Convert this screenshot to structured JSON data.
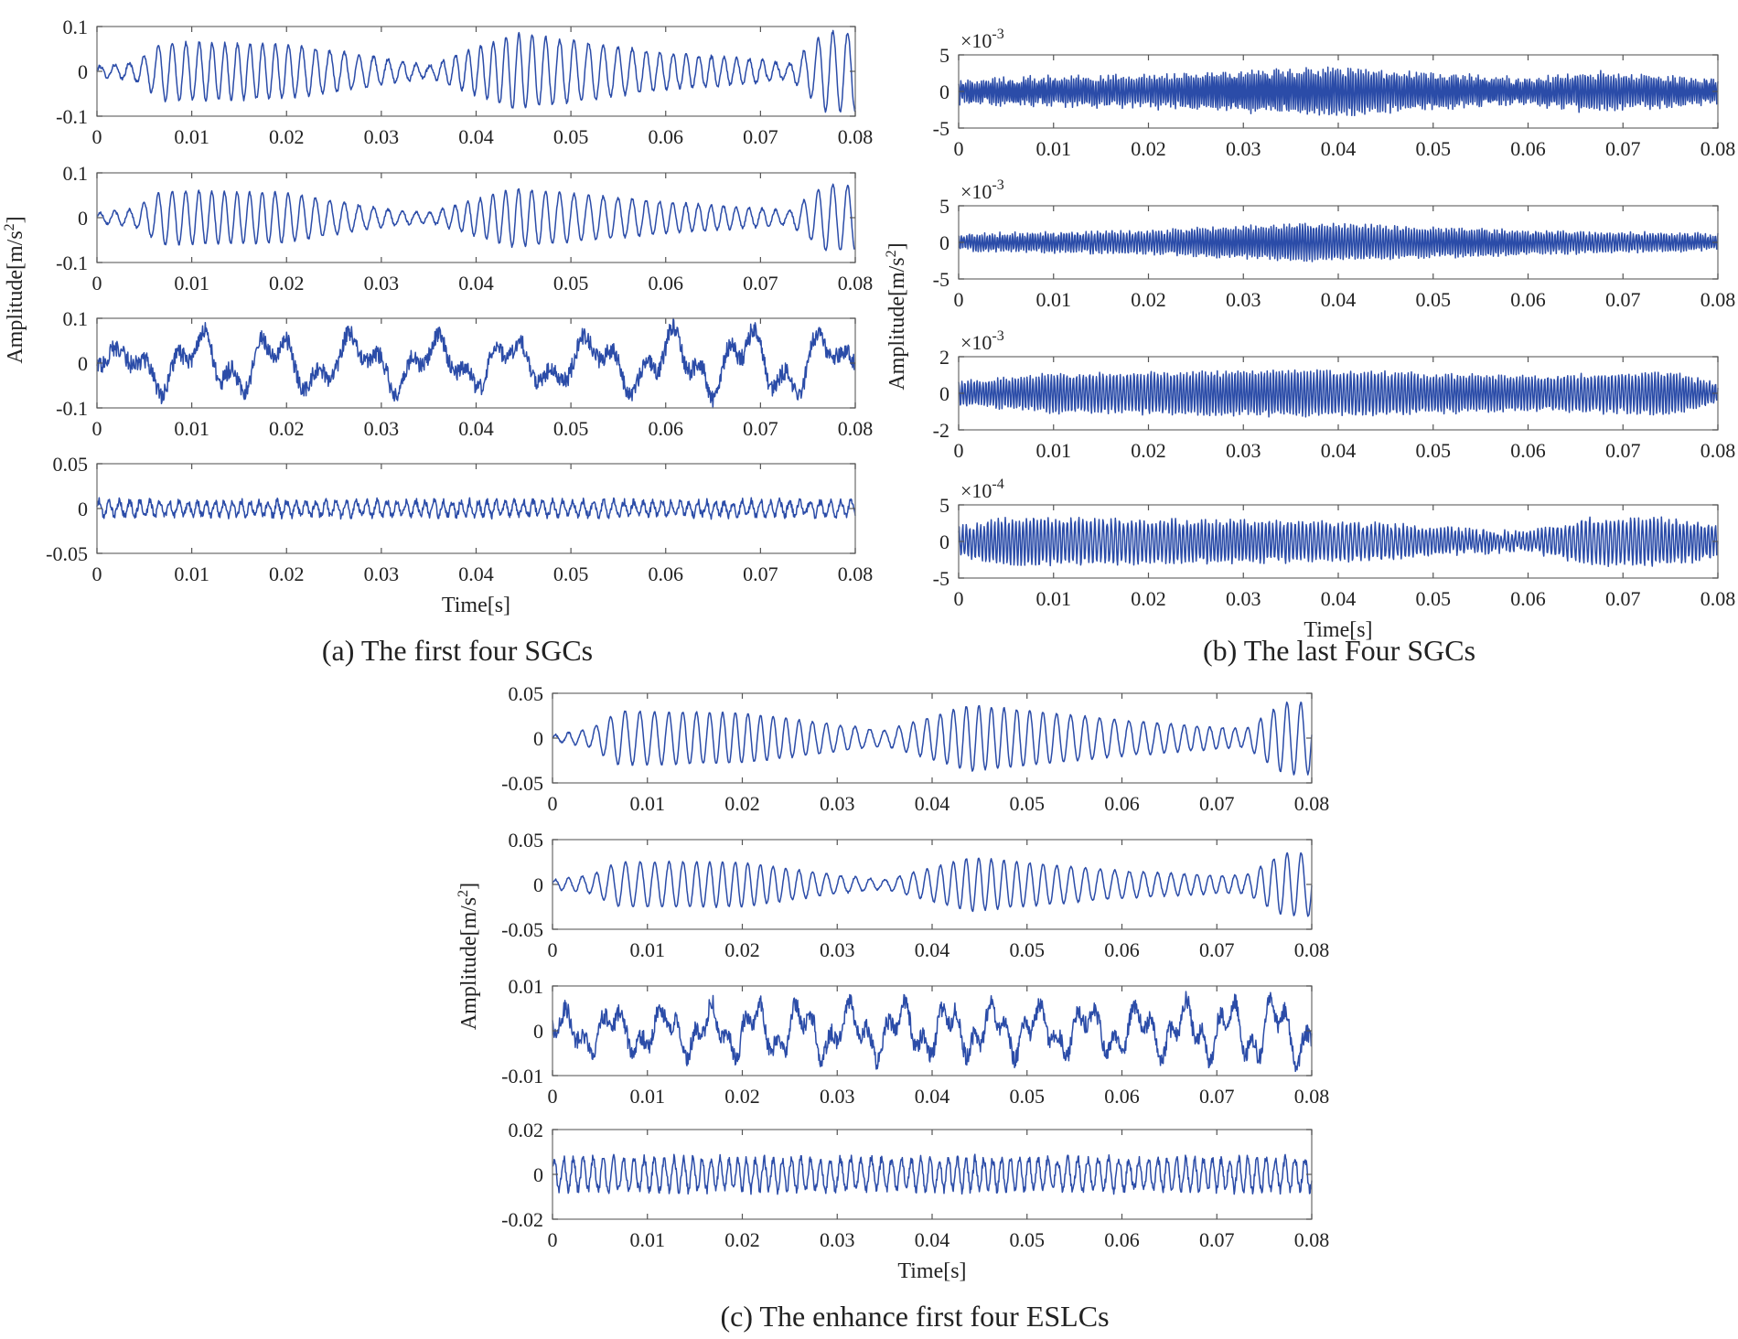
{
  "figure": {
    "captions": {
      "a": "(a) The first four SGCs",
      "b": "(b) The last Four SGCs",
      "c": "(c) The enhance first four ESLCs"
    },
    "ylabel": "Amplitude[m/s",
    "ylabel_sup": "2",
    "ylabel_end": "]",
    "xlabel": "Time[s]",
    "line_color": "#2b4ca8"
  },
  "chart_data": [
    {
      "panel": "a",
      "type": "line",
      "caption": "(a) The first four SGCs",
      "xlabel": "Time[s]",
      "ylabel": "Amplitude[m/s^2]",
      "subplots": [
        {
          "index": 1,
          "xlim": [
            0,
            0.08
          ],
          "x_ticks": [
            "0",
            "0.01",
            "0.02",
            "0.03",
            "0.04",
            "0.05",
            "0.06",
            "0.07",
            "0.08"
          ],
          "ylim": [
            -0.1,
            0.1
          ],
          "y_ticks": [
            "-0.1",
            "0",
            "0.1"
          ],
          "exponent": "",
          "series": {
            "carrier_hz": 700,
            "envelope_t": [
              0,
              0.004,
              0.007,
              0.02,
              0.03,
              0.035,
              0.044,
              0.06,
              0.07,
              0.073,
              0.077,
              0.08
            ],
            "envelope_a": [
              0.01,
              0.02,
              0.065,
              0.06,
              0.03,
              0.012,
              0.085,
              0.04,
              0.025,
              0.015,
              0.09,
              0.085
            ],
            "noise": 0.004
          }
        },
        {
          "index": 2,
          "xlim": [
            0,
            0.08
          ],
          "x_ticks": [
            "0",
            "0.01",
            "0.02",
            "0.03",
            "0.04",
            "0.05",
            "0.06",
            "0.07",
            "0.08"
          ],
          "ylim": [
            -0.1,
            0.1
          ],
          "y_ticks": [
            "-0.1",
            "0",
            "0.1"
          ],
          "exponent": "",
          "series": {
            "carrier_hz": 700,
            "envelope_t": [
              0,
              0.004,
              0.007,
              0.02,
              0.03,
              0.035,
              0.044,
              0.06,
              0.07,
              0.073,
              0.077,
              0.08
            ],
            "envelope_a": [
              0.01,
              0.02,
              0.06,
              0.055,
              0.02,
              0.01,
              0.065,
              0.035,
              0.02,
              0.015,
              0.075,
              0.07
            ],
            "noise": 0.003
          }
        },
        {
          "index": 3,
          "xlim": [
            0,
            0.08
          ],
          "x_ticks": [
            "0",
            "0.01",
            "0.02",
            "0.03",
            "0.04",
            "0.05",
            "0.06",
            "0.07",
            "0.08"
          ],
          "ylim": [
            -0.1,
            0.1
          ],
          "y_ticks": [
            "-0.1",
            "0",
            "0.1"
          ],
          "exponent": "",
          "series": {
            "carrier_hz": 120,
            "envelope_t": [
              0,
              0.008,
              0.03,
              0.045,
              0.067,
              0.075,
              0.08
            ],
            "envelope_a": [
              0.02,
              0.08,
              0.07,
              0.06,
              0.09,
              0.09,
              0.04
            ],
            "noise": 0.02
          }
        },
        {
          "index": 4,
          "xlim": [
            0,
            0.08
          ],
          "x_ticks": [
            "0",
            "0.01",
            "0.02",
            "0.03",
            "0.04",
            "0.05",
            "0.06",
            "0.07",
            "0.08"
          ],
          "ylim": [
            -0.05,
            0.05
          ],
          "y_ticks": [
            "-0.05",
            "0",
            "0.05"
          ],
          "exponent": "",
          "series": {
            "carrier_hz": 1000,
            "envelope_t": [
              0,
              0.08
            ],
            "envelope_a": [
              0.008,
              0.008
            ],
            "noise": 0.004
          }
        }
      ]
    },
    {
      "panel": "b",
      "type": "line",
      "caption": "(b) The last Four SGCs",
      "xlabel": "Time[s]",
      "ylabel": "Amplitude[m/s^2]",
      "subplots": [
        {
          "index": 1,
          "xlim": [
            0,
            0.08
          ],
          "x_ticks": [
            "0",
            "0.01",
            "0.02",
            "0.03",
            "0.04",
            "0.05",
            "0.06",
            "0.07",
            "0.08"
          ],
          "ylim": [
            -5,
            5
          ],
          "y_ticks": [
            "-5",
            "0",
            "5"
          ],
          "exponent": "-3",
          "series": {
            "carrier_hz": 4000,
            "envelope_t": [
              0,
              0.02,
              0.04,
              0.06,
              0.066,
              0.08
            ],
            "envelope_a": [
              1.5,
              2,
              3,
              1.5,
              2.5,
              1.5
            ],
            "noise": 0.5
          }
        },
        {
          "index": 2,
          "xlim": [
            0,
            0.08
          ],
          "x_ticks": [
            "0",
            "0.01",
            "0.02",
            "0.03",
            "0.04",
            "0.05",
            "0.06",
            "0.07",
            "0.08"
          ],
          "ylim": [
            -5,
            5
          ],
          "y_ticks": [
            "-5",
            "0",
            "5"
          ],
          "exponent": "-3",
          "series": {
            "carrier_hz": 3500,
            "envelope_t": [
              0,
              0.02,
              0.037,
              0.06,
              0.08
            ],
            "envelope_a": [
              1,
              1.5,
              2.5,
              1.5,
              1
            ],
            "noise": 0.3
          }
        },
        {
          "index": 3,
          "xlim": [
            0,
            0.08
          ],
          "x_ticks": [
            "0",
            "0.01",
            "0.02",
            "0.03",
            "0.04",
            "0.05",
            "0.06",
            "0.07",
            "0.08"
          ],
          "ylim": [
            -2,
            2
          ],
          "y_ticks": [
            "-2",
            "0",
            "2"
          ],
          "exponent": "-3",
          "series": {
            "carrier_hz": 3000,
            "envelope_t": [
              0,
              0.01,
              0.037,
              0.06,
              0.075,
              0.08
            ],
            "envelope_a": [
              0.6,
              1,
              1.2,
              0.9,
              1.1,
              0.5
            ],
            "noise": 0.15
          }
        },
        {
          "index": 4,
          "xlim": [
            0,
            0.08
          ],
          "x_ticks": [
            "0",
            "0.01",
            "0.02",
            "0.03",
            "0.04",
            "0.05",
            "0.06",
            "0.07",
            "0.08"
          ],
          "ylim": [
            -5,
            5
          ],
          "y_ticks": [
            "-5",
            "0",
            "5"
          ],
          "exponent": "-4",
          "series": {
            "carrier_hz": 2500,
            "envelope_t": [
              0,
              0.006,
              0.04,
              0.06,
              0.066,
              0.075,
              0.08
            ],
            "envelope_a": [
              2,
              3,
              2.5,
              1,
              3,
              3,
              2
            ],
            "noise": 0.5
          }
        }
      ]
    },
    {
      "panel": "c",
      "type": "line",
      "caption": "(c) The enhance first four ESLCs",
      "xlabel": "Time[s]",
      "ylabel": "Amplitude[m/s^2]",
      "subplots": [
        {
          "index": 1,
          "xlim": [
            0,
            0.08
          ],
          "x_ticks": [
            "0",
            "0.01",
            "0.02",
            "0.03",
            "0.04",
            "0.05",
            "0.06",
            "0.07",
            "0.08"
          ],
          "ylim": [
            -0.05,
            0.05
          ],
          "y_ticks": [
            "-0.05",
            "0",
            "0.05"
          ],
          "exponent": "",
          "series": {
            "carrier_hz": 700,
            "envelope_t": [
              0,
              0.004,
              0.007,
              0.02,
              0.03,
              0.035,
              0.044,
              0.06,
              0.07,
              0.073,
              0.077,
              0.08
            ],
            "envelope_a": [
              0.003,
              0.01,
              0.03,
              0.028,
              0.015,
              0.008,
              0.037,
              0.02,
              0.012,
              0.01,
              0.04,
              0.04
            ],
            "noise": 0.001
          }
        },
        {
          "index": 2,
          "xlim": [
            0,
            0.08
          ],
          "x_ticks": [
            "0",
            "0.01",
            "0.02",
            "0.03",
            "0.04",
            "0.05",
            "0.06",
            "0.07",
            "0.08"
          ],
          "ylim": [
            -0.05,
            0.05
          ],
          "y_ticks": [
            "-0.05",
            "0",
            "0.05"
          ],
          "exponent": "",
          "series": {
            "carrier_hz": 700,
            "envelope_t": [
              0,
              0.004,
              0.007,
              0.02,
              0.03,
              0.035,
              0.044,
              0.06,
              0.07,
              0.073,
              0.077,
              0.08
            ],
            "envelope_a": [
              0.005,
              0.01,
              0.025,
              0.025,
              0.01,
              0.005,
              0.03,
              0.015,
              0.01,
              0.01,
              0.035,
              0.035
            ],
            "noise": 0.001
          }
        },
        {
          "index": 3,
          "xlim": [
            0,
            0.08
          ],
          "x_ticks": [
            "0",
            "0.01",
            "0.02",
            "0.03",
            "0.04",
            "0.05",
            "0.06",
            "0.07",
            "0.08"
          ],
          "ylim": [
            -0.01,
            0.01
          ],
          "y_ticks": [
            "-0.01",
            "0",
            "0.01"
          ],
          "exponent": "",
          "series": {
            "carrier_hz": 200,
            "envelope_t": [
              0,
              0.02,
              0.04,
              0.06,
              0.077,
              0.08
            ],
            "envelope_a": [
              0.005,
              0.007,
              0.007,
              0.006,
              0.009,
              0.008
            ],
            "noise": 0.002
          }
        },
        {
          "index": 4,
          "xlim": [
            0,
            0.08
          ],
          "x_ticks": [
            "0",
            "0.01",
            "0.02",
            "0.03",
            "0.04",
            "0.05",
            "0.06",
            "0.07",
            "0.08"
          ],
          "ylim": [
            -0.02,
            0.02
          ],
          "y_ticks": [
            "-0.02",
            "0",
            "0.02"
          ],
          "exponent": "",
          "series": {
            "carrier_hz": 1000,
            "envelope_t": [
              0,
              0.08
            ],
            "envelope_a": [
              0.007,
              0.007
            ],
            "noise": 0.002
          }
        }
      ]
    }
  ]
}
